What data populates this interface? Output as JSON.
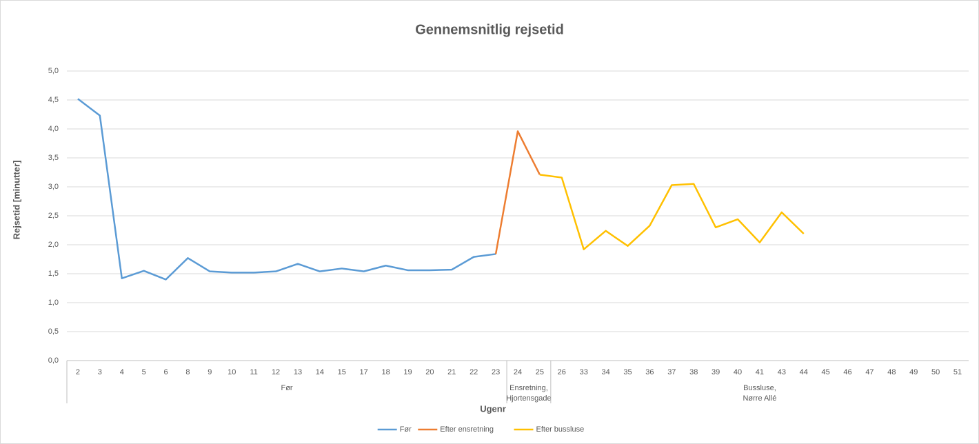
{
  "chart_data": {
    "type": "line",
    "title": "Gennemsnitlig rejsetid",
    "y_label": "Rejsetid [minutter]",
    "x_label": "Ugenr",
    "categories": [
      "2",
      "3",
      "4",
      "5",
      "6",
      "8",
      "9",
      "10",
      "11",
      "12",
      "13",
      "14",
      "15",
      "17",
      "18",
      "19",
      "20",
      "21",
      "22",
      "23",
      "24",
      "25",
      "26",
      "33",
      "34",
      "35",
      "36",
      "37",
      "38",
      "39",
      "40",
      "41",
      "43",
      "44",
      "45",
      "46",
      "47",
      "48",
      "49",
      "50",
      "51"
    ],
    "groups": [
      {
        "label": [
          "Før"
        ],
        "span": 20
      },
      {
        "label": [
          "Ensretning,",
          "Hjortensgade"
        ],
        "span": 2
      },
      {
        "label": [
          "Bussluse,",
          "Nørre Allé"
        ],
        "span": 19
      }
    ],
    "series": [
      {
        "name": "Før",
        "color": "#5b9bd5",
        "values": [
          4.52,
          4.23,
          1.42,
          1.55,
          1.4,
          1.77,
          1.54,
          1.52,
          1.52,
          1.54,
          1.67,
          1.54,
          1.59,
          1.54,
          1.64,
          1.56,
          1.56,
          1.57,
          1.79,
          1.84,
          null,
          null,
          null,
          null,
          null,
          null,
          null,
          null,
          null,
          null,
          null,
          null,
          null,
          null,
          null,
          null,
          null,
          null,
          null,
          null,
          null
        ]
      },
      {
        "name": "Efter ensretning",
        "color": "#ed7d31",
        "values": [
          null,
          null,
          null,
          null,
          null,
          null,
          null,
          null,
          null,
          null,
          null,
          null,
          null,
          null,
          null,
          null,
          null,
          null,
          null,
          1.84,
          3.96,
          3.21,
          null,
          null,
          null,
          null,
          null,
          null,
          null,
          null,
          null,
          null,
          null,
          null,
          null,
          null,
          null,
          null,
          null,
          null,
          null
        ]
      },
      {
        "name": "Efter bussluse",
        "color": "#ffc000",
        "values": [
          null,
          null,
          null,
          null,
          null,
          null,
          null,
          null,
          null,
          null,
          null,
          null,
          null,
          null,
          null,
          null,
          null,
          null,
          null,
          null,
          null,
          3.21,
          3.16,
          1.92,
          2.24,
          1.98,
          2.33,
          3.03,
          3.05,
          2.3,
          2.44,
          2.04,
          2.56,
          2.19,
          null,
          null,
          null,
          null,
          null,
          null,
          null
        ]
      }
    ],
    "ylim": [
      0,
      5
    ],
    "yticks": [
      {
        "value": 0,
        "label": "0,0"
      },
      {
        "value": 0.5,
        "label": "0,5"
      },
      {
        "value": 1,
        "label": "1,0"
      },
      {
        "value": 1.5,
        "label": "1,5"
      },
      {
        "value": 2,
        "label": "2,0"
      },
      {
        "value": 2.5,
        "label": "2,5"
      },
      {
        "value": 3,
        "label": "3,0"
      },
      {
        "value": 3.5,
        "label": "3,5"
      },
      {
        "value": 4,
        "label": "4,0"
      },
      {
        "value": 4.5,
        "label": "4,5"
      },
      {
        "value": 5,
        "label": "5,0"
      }
    ],
    "grid": true,
    "legend": "bottom"
  }
}
